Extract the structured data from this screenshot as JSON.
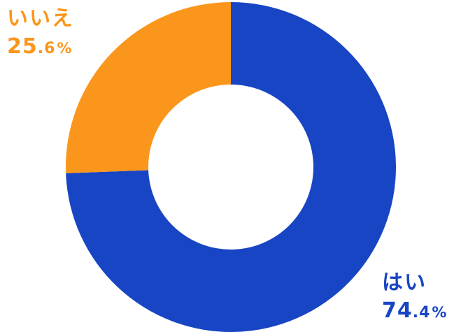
{
  "chart_data": {
    "type": "pie",
    "style": "donut",
    "categories": [
      "はい",
      "いいえ"
    ],
    "values": [
      74.4,
      25.6
    ],
    "colors": [
      "#1845c4",
      "#fb961c"
    ],
    "labels": [
      {
        "name": "はい",
        "int": "74",
        "dec": ".4",
        "unit": "%"
      },
      {
        "name": "いいえ",
        "int": "25",
        "dec": ".6",
        "unit": "%"
      }
    ],
    "start": "12 o'clock",
    "direction": "clockwise"
  }
}
